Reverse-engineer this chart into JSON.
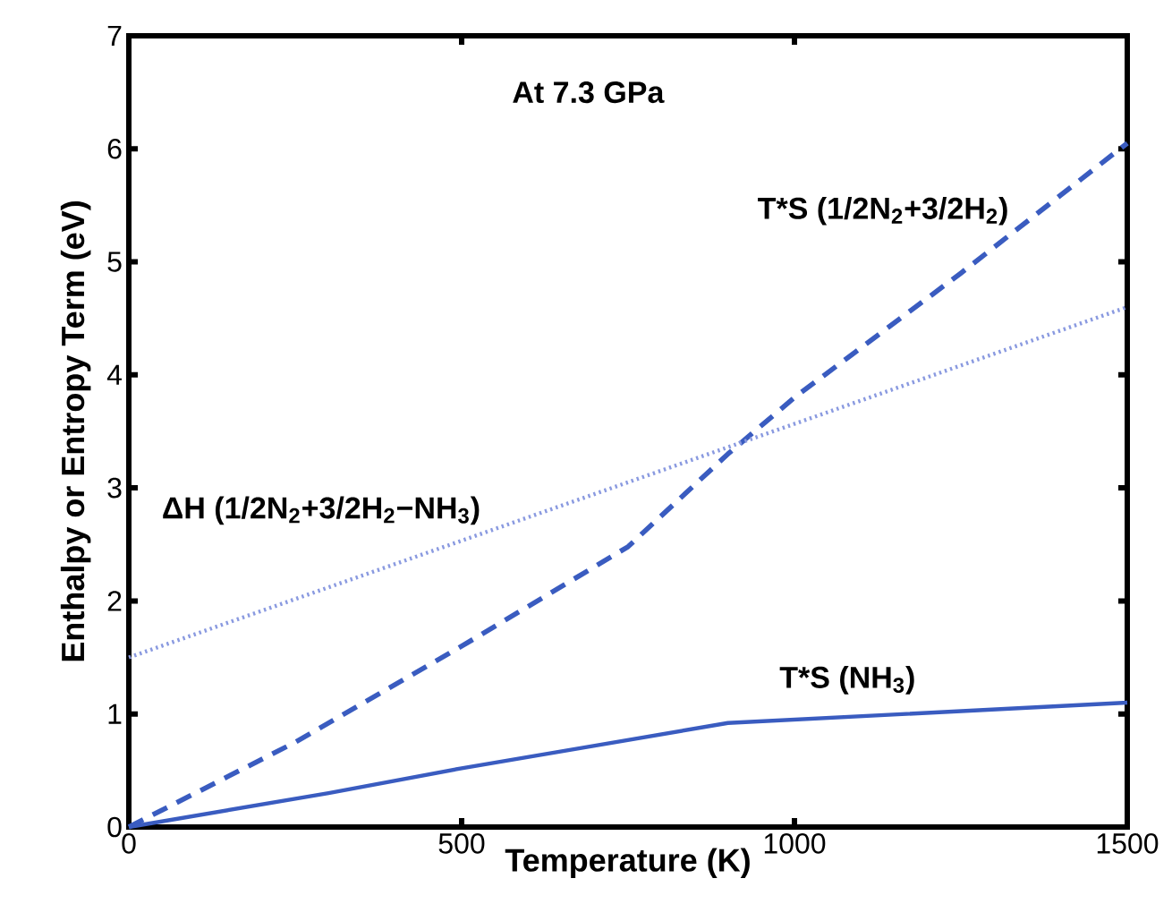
{
  "chart_data": {
    "type": "line",
    "xlabel": "Temperature (K)",
    "ylabel": "Enthalpy or Entropy Term (eV)",
    "annotations": [
      "At 7.3 GPa"
    ],
    "xlim": [
      0,
      1500
    ],
    "ylim": [
      0,
      7
    ],
    "xticks": [
      0,
      500,
      1000,
      1500
    ],
    "yticks": [
      0,
      1,
      2,
      3,
      4,
      5,
      6,
      7
    ],
    "series": [
      {
        "name": "T*S (1/2N$_{2}$+3/2H$_{2}$)",
        "color": "#3a5cc0",
        "line_style": "dashed",
        "x": [
          0,
          250,
          500,
          750,
          900,
          1000,
          1250,
          1500
        ],
        "values": [
          0,
          0.75,
          1.6,
          2.48,
          3.3,
          3.8,
          4.9,
          6.05
        ]
      },
      {
        "name": "ΔH (1/2N$_{2}$+3/2H$_{2}$−NH$_{3}$)",
        "color": "#8a9ae0",
        "line_style": "dotted",
        "x": [
          0,
          1500
        ],
        "values": [
          1.5,
          4.6
        ]
      },
      {
        "name": "T*S (NH$_{3}$)",
        "color": "#3a5cc0",
        "line_style": "solid",
        "x": [
          0,
          300,
          500,
          700,
          900,
          1500
        ],
        "values": [
          0,
          0.3,
          0.52,
          0.72,
          0.92,
          1.1
        ]
      }
    ]
  }
}
